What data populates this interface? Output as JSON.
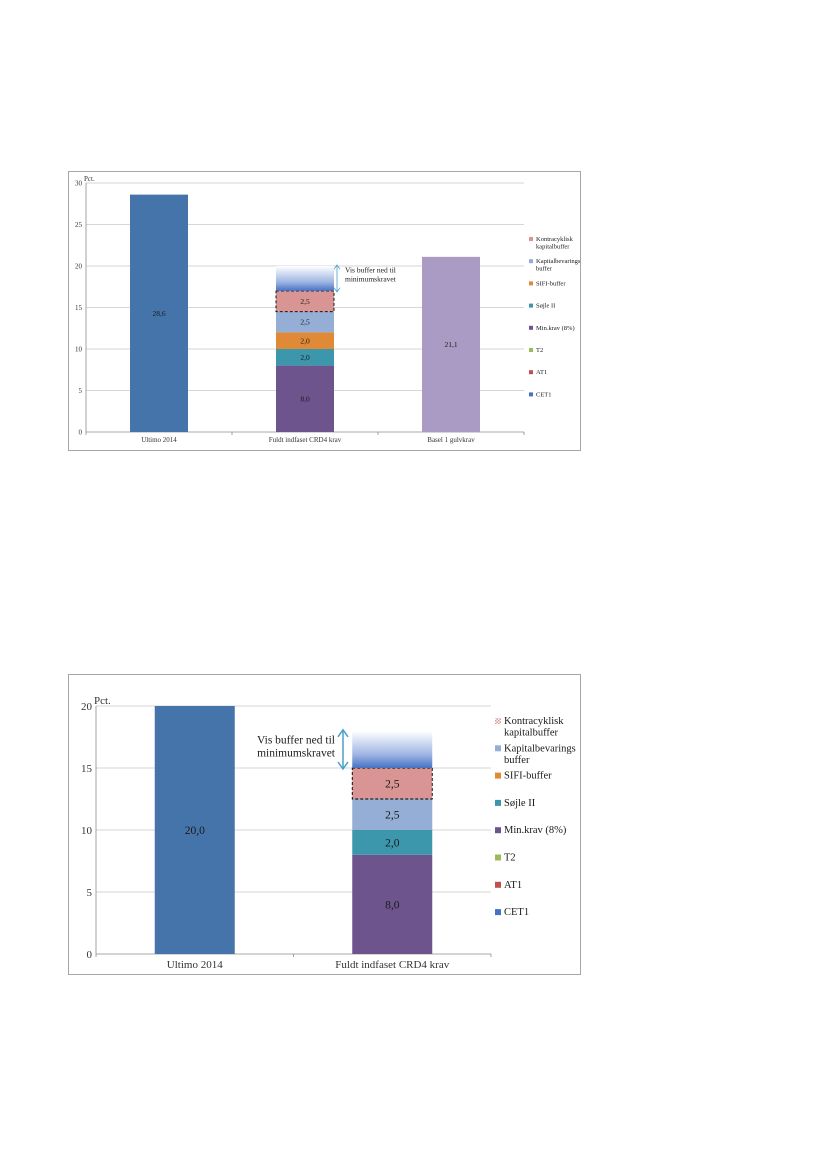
{
  "colors": {
    "cet1": "#4472c4",
    "at1": "#c0504d",
    "t2": "#9bbb59",
    "min_krav": "#6e548d",
    "sojle": "#3c97ad",
    "sifi": "#e08a37",
    "kapbev": "#94aed6",
    "kontra": "#d99594",
    "ultimo": "#4574aa",
    "basel": "#a99bc3",
    "buffer_arrow": "#4aa0c8",
    "grid": "#c8c8c8"
  },
  "chart_data": [
    {
      "type": "bar",
      "stacked": true,
      "ylabel": "Pct.",
      "ylim": [
        0,
        30
      ],
      "yticks": [
        "0",
        "5",
        "10",
        "15",
        "20",
        "25",
        "30"
      ],
      "grid": true,
      "legend_position": "right",
      "categories": [
        "Ultimo 2014",
        "Fuldt indfaset CRD4 krav",
        "Basel 1 gulvkrav"
      ],
      "single_bars": [
        {
          "category": "Ultimo 2014",
          "value": 28.6,
          "label": "28,6",
          "color_key": "ultimo"
        },
        {
          "category": "Basel 1 gulvkrav",
          "value": 21.1,
          "label": "21,1",
          "color_key": "basel"
        }
      ],
      "stack": {
        "category": "Fuldt indfaset CRD4 krav",
        "segments": [
          {
            "name": "Min.krav (8%)",
            "value": 8.0,
            "label": "8,0",
            "color_key": "min_krav"
          },
          {
            "name": "Søjle II",
            "value": 2.0,
            "label": "2,0",
            "color_key": "sojle"
          },
          {
            "name": "SIFI-buffer",
            "value": 2.0,
            "label": "2,0",
            "color_key": "sifi"
          },
          {
            "name": "Kapitalbevarings buffer",
            "value": 2.5,
            "label": "2,5",
            "color_key": "kapbev"
          },
          {
            "name": "Kontracyklisk kapitalbuffer",
            "value": 2.5,
            "label": "2,5",
            "color_key": "kontra",
            "dashed": true
          }
        ],
        "buffer_fade_top": 20.0
      },
      "annotation": [
        "Vis buffer ned til",
        "minimumskravet"
      ],
      "legend": [
        {
          "label": [
            "Kontracyklisk",
            "kapitalbuffer"
          ],
          "color_key": "kontra"
        },
        {
          "label": [
            "Kapitalbevarings",
            "buffer"
          ],
          "color_key": "kapbev"
        },
        {
          "label": [
            "SIFI-buffer"
          ],
          "color_key": "sifi"
        },
        {
          "label": [
            "Søjle II"
          ],
          "color_key": "sojle"
        },
        {
          "label": [
            "Min.krav (8%)"
          ],
          "color_key": "min_krav"
        },
        {
          "label": [
            "T2"
          ],
          "color_key": "t2"
        },
        {
          "label": [
            "AT1"
          ],
          "color_key": "at1"
        },
        {
          "label": [
            "CET1"
          ],
          "color_key": "cet1"
        }
      ]
    },
    {
      "type": "bar",
      "stacked": true,
      "ylabel": "Pct.",
      "ylim": [
        0,
        20
      ],
      "yticks": [
        "0",
        "5",
        "10",
        "15",
        "20"
      ],
      "grid": true,
      "legend_position": "right",
      "categories": [
        "Ultimo 2014",
        "Fuldt indfaset CRD4 krav"
      ],
      "single_bars": [
        {
          "category": "Ultimo 2014",
          "value": 20.0,
          "label": "20,0",
          "color_key": "ultimo"
        }
      ],
      "stack": {
        "category": "Fuldt indfaset CRD4 krav",
        "segments": [
          {
            "name": "Min.krav (8%)",
            "value": 8.0,
            "label": "8,0",
            "color_key": "min_krav"
          },
          {
            "name": "Søjle II",
            "value": 2.0,
            "label": "2,0",
            "color_key": "sojle"
          },
          {
            "name": "Kapitalbevarings buffer",
            "value": 2.5,
            "label": "2,5",
            "color_key": "kapbev"
          },
          {
            "name": "Kontracyklisk kapitalbuffer",
            "value": 2.5,
            "label": "2,5",
            "color_key": "kontra",
            "dashed": true
          }
        ],
        "buffer_fade_top": 18.0
      },
      "annotation": [
        "Vis buffer ned til",
        "minimumskravet"
      ],
      "legend": [
        {
          "label": [
            "Kontracyklisk",
            "kapitalbuffer"
          ],
          "color_key": "kontra",
          "pattern": true
        },
        {
          "label": [
            "Kapitalbevarings",
            "buffer"
          ],
          "color_key": "kapbev"
        },
        {
          "label": [
            "SIFI-buffer"
          ],
          "color_key": "sifi"
        },
        {
          "label": [
            "Søjle II"
          ],
          "color_key": "sojle"
        },
        {
          "label": [
            "Min.krav (8%)"
          ],
          "color_key": "min_krav"
        },
        {
          "label": [
            "T2"
          ],
          "color_key": "t2"
        },
        {
          "label": [
            "AT1"
          ],
          "color_key": "at1"
        },
        {
          "label": [
            "CET1"
          ],
          "color_key": "cet1"
        }
      ]
    }
  ]
}
